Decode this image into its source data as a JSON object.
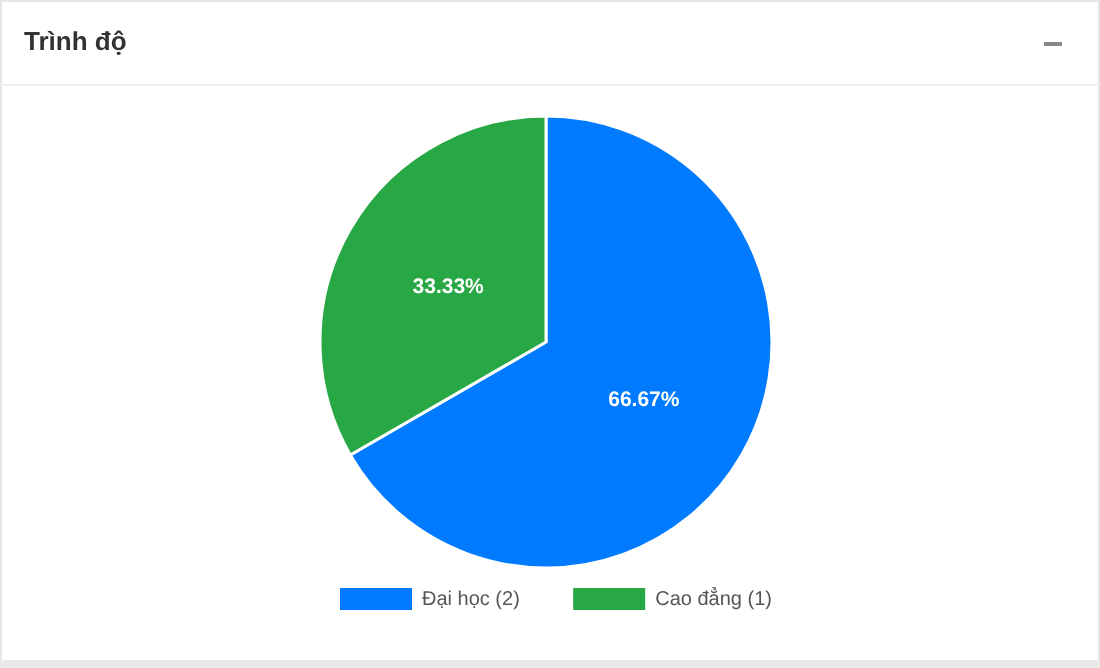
{
  "chart_data": {
    "type": "pie",
    "title": "Trình độ",
    "categories": [
      "Đại học (2)",
      "Cao đẳng (1)"
    ],
    "values": [
      66.67,
      33.33
    ],
    "colors": [
      "#007bff",
      "#28a745"
    ],
    "value_labels": [
      "66.67%",
      "33.33%"
    ],
    "legend": "bottom"
  }
}
